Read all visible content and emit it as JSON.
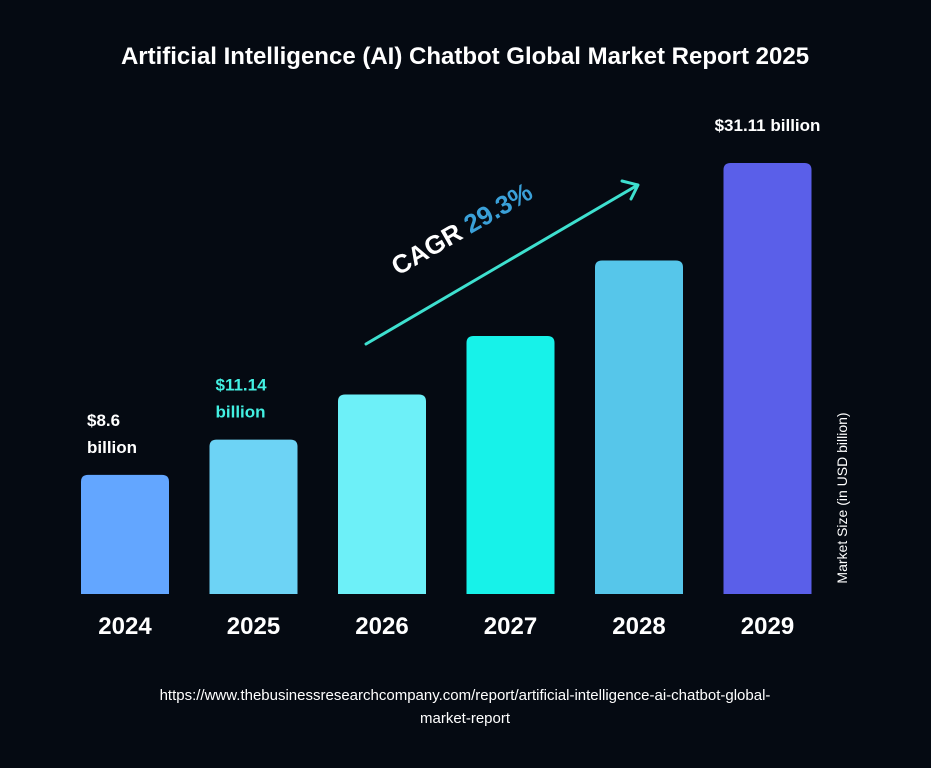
{
  "chart_data": {
    "type": "bar",
    "title": "Artificial Intelligence (AI) Chatbot Global Market Report 2025",
    "categories": [
      "2024",
      "2025",
      "2026",
      "2027",
      "2028",
      "2029"
    ],
    "values": [
      8.6,
      11.14,
      14.4,
      18.62,
      24.07,
      31.11
    ],
    "colors": [
      "#63a6ff",
      "#6dd3f5",
      "#6df0f8",
      "#17f2e9",
      "#56c6ea",
      "#5a5fe9"
    ],
    "data_labels": [
      {
        "index": 0,
        "lines": [
          "$8.6",
          "billion"
        ],
        "color": "#ffffff"
      },
      {
        "index": 1,
        "lines": [
          "$11.14",
          "billion"
        ],
        "color": "#43f0e2"
      },
      {
        "index": 5,
        "lines": [
          "$31.11 billion"
        ],
        "color": "#ffffff"
      }
    ],
    "ylabel": "Market Size (in USD billion)",
    "xlabel": "",
    "ylim": [
      0,
      31.11
    ],
    "grid": false,
    "annotation": {
      "prefix": "CAGR ",
      "value": "29.3%",
      "prefix_color": "#ffffff",
      "value_color": "#3aa0d8",
      "arrow_color": "#3ee0cf"
    }
  },
  "source": {
    "line1": "https://www.thebusinessresearchcompany.com/report/artificial-intelligence-ai-chatbot-global-",
    "line2": "market-report"
  }
}
